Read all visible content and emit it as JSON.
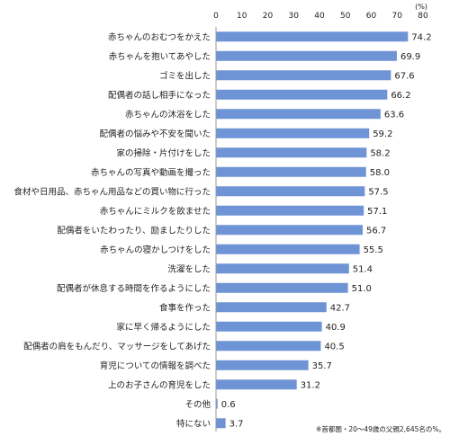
{
  "chart_data": {
    "type": "bar",
    "orientation": "horizontal",
    "unit_label": "(%)",
    "xlim": [
      0,
      80
    ],
    "ticks": [
      0,
      10,
      20,
      30,
      40,
      50,
      60,
      70,
      80
    ],
    "grid": false,
    "bar_color": "#6f94d6",
    "categories": [
      "赤ちゃんのおむつをかえた",
      "赤ちゃんを抱いてあやした",
      "ゴミを出した",
      "配偶者の話し相手になった",
      "赤ちゃんの沐浴をした",
      "配偶者の悩みや不安を聞いた",
      "家の掃除・片付けをした",
      "赤ちゃんの写真や動画を撮った",
      "食材や日用品、赤ちゃん用品などの買い物に行った",
      "赤ちゃんにミルクを飲ませた",
      "配偶者をいたわったり、励ましたりした",
      "赤ちゃんの寝かしつけをした",
      "洗濯をした",
      "配偶者が休息する時間を作るようにした",
      "食事を作った",
      "家に早く帰るようにした",
      "配偶者の肩をもんだり、マッサージをしてあげた",
      "育児についての情報を調べた",
      "上のお子さんの育児をした",
      "その他",
      "特にない"
    ],
    "values": [
      74.2,
      69.9,
      67.6,
      66.2,
      63.6,
      59.2,
      58.2,
      58.0,
      57.5,
      57.1,
      56.7,
      55.5,
      51.4,
      51.0,
      42.7,
      40.9,
      40.5,
      35.7,
      31.2,
      0.6,
      3.7
    ],
    "value_labels": [
      "74.2",
      "69.9",
      "67.6",
      "66.2",
      "63.6",
      "59.2",
      "58.2",
      "58.0",
      "57.5",
      "57.1",
      "56.7",
      "55.5",
      "51.4",
      "51.0",
      "42.7",
      "40.9",
      "40.5",
      "35.7",
      "31.2",
      "0.6",
      "3.7"
    ],
    "note": "※首都圏・20～49歳の父親2,645名の%。"
  }
}
